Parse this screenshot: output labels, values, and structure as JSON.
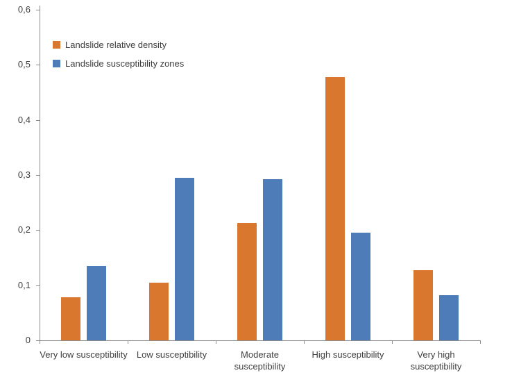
{
  "chart_data": {
    "type": "bar",
    "title": "",
    "xlabel": "",
    "ylabel": "",
    "categories": [
      "Very low susceptibility",
      "Low susceptibility",
      "Moderate susceptibility",
      "High susceptibility",
      "Very high susceptibility"
    ],
    "series": [
      {
        "name": "Landslide relative density",
        "color": "#D9772E",
        "values": [
          0.078,
          0.105,
          0.213,
          0.478,
          0.127
        ]
      },
      {
        "name": "Landslide susceptibility zones",
        "color": "#4E7CB8",
        "values": [
          0.135,
          0.295,
          0.292,
          0.195,
          0.082
        ]
      }
    ],
    "ylim": [
      0,
      0.6
    ],
    "ytick_interval": 0.1,
    "ytick_labels": [
      "0",
      "0,1",
      "0,2",
      "0,3",
      "0,4",
      "0,5",
      "0,6"
    ],
    "grid": false,
    "legend_position": "top-left-inside",
    "axis_color": "#8C8C8C",
    "background_color": "#FFFFFF"
  }
}
